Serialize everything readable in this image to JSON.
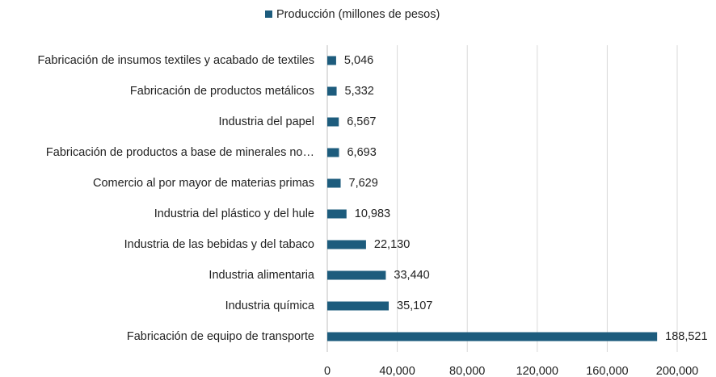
{
  "chart_data": {
    "type": "hbar",
    "categories": [
      "Fabricación de insumos textiles y acabado de textiles",
      "Fabricación de productos metálicos",
      "Industria del papel",
      "Fabricación de productos a base de minerales no…",
      "Comercio al por mayor de materias primas",
      "Industria del plástico y del hule",
      "Industria de las bebidas y del tabaco",
      "Industria alimentaria",
      "Industria química",
      "Fabricación de equipo de transporte"
    ],
    "series": [
      {
        "name": "Producción (millones de pesos)",
        "color": "#1d5c7d",
        "values": [
          5046,
          5332,
          6567,
          6693,
          7629,
          10983,
          22130,
          33440,
          35107,
          188521
        ],
        "value_labels": [
          "5,046",
          "5,332",
          "6,567",
          "6,693",
          "7,629",
          "10,983",
          "22,130",
          "33,440",
          "35,107",
          "188,521"
        ]
      }
    ],
    "xlim": [
      0,
      200000
    ],
    "xticks": [
      0,
      {
        "value": 40000,
        "label": "40,000"
      },
      {
        "value": 80000,
        "label": "80,000"
      },
      {
        "value": 120000,
        "label": "120,000"
      },
      {
        "value": 160000,
        "label": "160,000"
      },
      {
        "value": 200000,
        "label": "200,000"
      }
    ],
    "grid": true,
    "legend": "top"
  }
}
